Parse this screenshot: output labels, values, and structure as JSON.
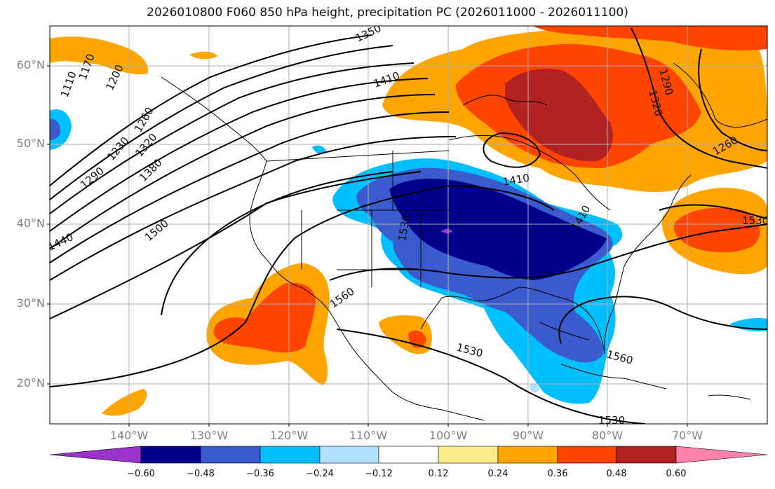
{
  "title": "2026010800 F060 850 hPa height, precipitation PC (2026011000 - 2026011100)",
  "lat_labels": [
    "60°N",
    "50°N",
    "40°N",
    "30°N",
    "20°N"
  ],
  "lon_labels": [
    "140°W",
    "130°W",
    "120°W",
    "110°W",
    "100°W",
    "90°W",
    "80°W",
    "70°W"
  ],
  "contour_labels": [
    "1110",
    "1170",
    "1200",
    "1260",
    "1230",
    "1320",
    "1290",
    "1380",
    "1350",
    "1410",
    "1440",
    "1500",
    "1560",
    "1530",
    "1410",
    "1560",
    "1530",
    "1290",
    "1320",
    "1260",
    "1530",
    "1410",
    "1530"
  ],
  "colorbar": {
    "ticks": [
      "−0.60",
      "−0.48",
      "−0.36",
      "−0.24",
      "−0.12",
      "0.12",
      "0.24",
      "0.36",
      "0.48",
      "0.60"
    ],
    "colors": [
      "#9a32cd",
      "#00008b",
      "#3a5acd",
      "#00bfff",
      "#b0e2ff",
      "#ffffff",
      "#ffec8b",
      "#ffa500",
      "#ff4500",
      "#b22222",
      "#ff82ab"
    ]
  },
  "colors": {
    "coast": "#000000",
    "grid": "#b0b0b0",
    "contour": "#000000",
    "axis_label": "#7f7f7f"
  }
}
